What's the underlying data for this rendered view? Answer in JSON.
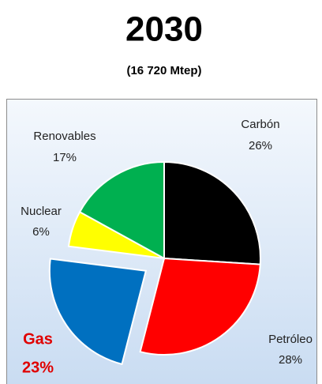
{
  "chart_data": {
    "type": "pie",
    "title": "2030",
    "subtitle": "(16 720 Mtep)",
    "categories": [
      "Carbón",
      "Petróleo",
      "Gas",
      "Nuclear",
      "Renovables"
    ],
    "values": [
      26,
      28,
      23,
      6,
      17
    ],
    "value_labels": [
      "26%",
      "28%",
      "23%",
      "6%",
      "17%"
    ],
    "colors": [
      "#000000",
      "#ff0000",
      "#0070c0",
      "#ffff00",
      "#00b050"
    ],
    "explode": [
      false,
      false,
      true,
      false,
      false
    ]
  }
}
